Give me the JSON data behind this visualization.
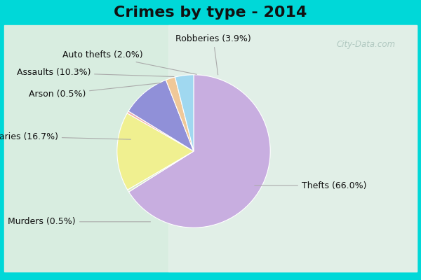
{
  "title": "Crimes by type - 2014",
  "labels": [
    "Thefts",
    "Murders",
    "Burglaries",
    "Arson",
    "Assaults",
    "Auto thefts",
    "Robberies"
  ],
  "values": [
    66.0,
    0.5,
    16.7,
    0.5,
    10.3,
    2.0,
    3.9
  ],
  "colors": [
    "#c8aee0",
    "#d8e8c8",
    "#f0f090",
    "#f0b0b0",
    "#9090d8",
    "#f0c898",
    "#a0d8f0"
  ],
  "background_top": "#00d8d8",
  "background_main_tl": "#c8e8d8",
  "background_main_br": "#e8f0e8",
  "title_fontsize": 16,
  "label_fontsize": 9,
  "startangle": 90,
  "watermark": "City-Data.com"
}
